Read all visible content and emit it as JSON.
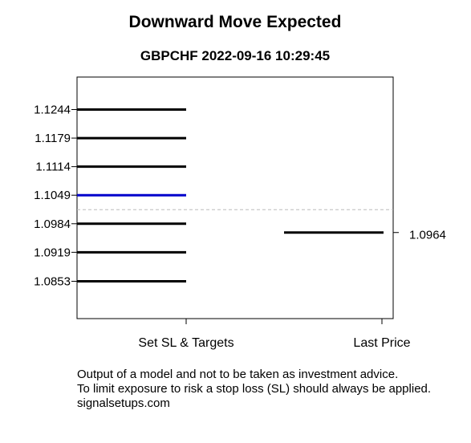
{
  "chart_data": {
    "type": "line",
    "title": "Downward Move Expected",
    "subtitle": "GBPCHF 2022-09-16 10:29:45",
    "categories": [
      "Set SL & Targets",
      "Last Price"
    ],
    "ylim": [
      1.0768,
      1.1318
    ],
    "levels": [
      {
        "value": 1.1244,
        "label": "1.1244",
        "color": "#000000"
      },
      {
        "value": 1.1179,
        "label": "1.1179",
        "color": "#000000"
      },
      {
        "value": 1.1114,
        "label": "1.1114",
        "color": "#000000"
      },
      {
        "value": 1.1049,
        "label": "1.1049",
        "color": "#0000cc"
      },
      {
        "value": 1.0984,
        "label": "1.0984",
        "color": "#000000"
      },
      {
        "value": 1.0919,
        "label": "1.0919",
        "color": "#000000"
      },
      {
        "value": 1.0853,
        "label": "1.0853",
        "color": "#000000"
      }
    ],
    "last_price": {
      "value": 1.0964,
      "label": "1.0964"
    },
    "reference_line": {
      "value": 1.1016,
      "style": "dashed",
      "color": "#bbbbbb"
    },
    "grid": false
  },
  "footer": {
    "line1": "Output of a model and not to be taken as investment advice.",
    "line2": "To limit exposure to risk a stop loss (SL) should always be applied.",
    "line3": "signalsetups.com"
  }
}
